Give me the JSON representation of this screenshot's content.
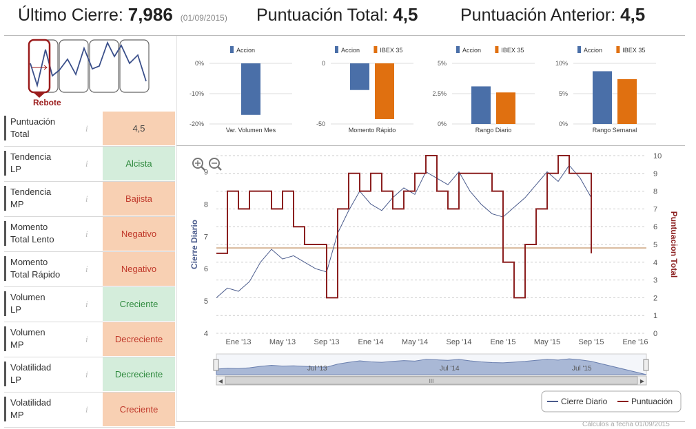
{
  "header": {
    "last_close_label": "Último Cierre:",
    "last_close_value": "7,986",
    "last_close_date": "(01/09/2015)",
    "total_score_label": "Puntuación Total:",
    "total_score_value": "4,5",
    "prev_score_label": "Puntuación Anterior:",
    "prev_score_value": "4,5"
  },
  "pattern": {
    "label": "Rebote",
    "accent": "#9b1c1c"
  },
  "indicators": [
    {
      "label_1": "Puntuación",
      "label_2": "Total",
      "value": "4,5",
      "bg": "#f8d0b3",
      "color": "#444"
    },
    {
      "label_1": "Tendencia",
      "label_2": "LP",
      "value": "Alcista",
      "bg": "#d4eddb",
      "color": "#2f8a3e"
    },
    {
      "label_1": "Tendencia",
      "label_2": "MP",
      "value": "Bajista",
      "bg": "#f8d0b3",
      "color": "#c0392b"
    },
    {
      "label_1": "Momento",
      "label_2": "Total Lento",
      "value": "Negativo",
      "bg": "#f8d0b3",
      "color": "#c0392b"
    },
    {
      "label_1": "Momento",
      "label_2": "Total Rápido",
      "value": "Negativo",
      "bg": "#f8d0b3",
      "color": "#c0392b"
    },
    {
      "label_1": "Volumen",
      "label_2": "LP",
      "value": "Creciente",
      "bg": "#d4eddb",
      "color": "#2f8a3e"
    },
    {
      "label_1": "Volumen",
      "label_2": "MP",
      "value": "Decreciente",
      "bg": "#f8d0b3",
      "color": "#c0392b"
    },
    {
      "label_1": "Volatilidad",
      "label_2": "LP",
      "value": "Decreciente",
      "bg": "#d4eddb",
      "color": "#2f8a3e"
    },
    {
      "label_1": "Volatilidad",
      "label_2": "MP",
      "value": "Creciente",
      "bg": "#f8d0b3",
      "color": "#c0392b"
    }
  ],
  "info_icon": "i",
  "chart_data": [
    {
      "type": "bar",
      "title": "Var. Volumen Mes",
      "legend": [
        "Accion"
      ],
      "yticks": [
        "0%",
        "-10%",
        "-20%"
      ],
      "ylim": [
        -20,
        0
      ],
      "series": [
        {
          "name": "Accion",
          "values": [
            -17
          ],
          "color": "#4a6fa8"
        }
      ]
    },
    {
      "type": "bar",
      "title": "Momento Rápido",
      "legend": [
        "Accion",
        "IBEX 35"
      ],
      "yticks": [
        "0",
        "-50"
      ],
      "ylim": [
        -50,
        0
      ],
      "series": [
        {
          "name": "Accion",
          "values": [
            -22
          ],
          "color": "#4a6fa8"
        },
        {
          "name": "IBEX 35",
          "values": [
            -46
          ],
          "color": "#e07010"
        }
      ]
    },
    {
      "type": "bar",
      "title": "Rango Diario",
      "legend": [
        "Accion",
        "IBEX 35"
      ],
      "yticks": [
        "5%",
        "2.5%",
        "0%"
      ],
      "ylim": [
        0,
        5
      ],
      "series": [
        {
          "name": "Accion",
          "values": [
            3.1
          ],
          "color": "#4a6fa8"
        },
        {
          "name": "IBEX 35",
          "values": [
            2.6
          ],
          "color": "#e07010"
        }
      ]
    },
    {
      "type": "bar",
      "title": "Rango Semanal",
      "legend": [
        "Accion",
        "IBEX 35"
      ],
      "yticks": [
        "10%",
        "5%",
        "0%"
      ],
      "ylim": [
        0,
        10
      ],
      "series": [
        {
          "name": "Accion",
          "values": [
            8.7
          ],
          "color": "#4a6fa8"
        },
        {
          "name": "IBEX 35",
          "values": [
            7.4
          ],
          "color": "#e07010"
        }
      ]
    },
    {
      "type": "line",
      "ylabel": "Cierre Diario",
      "y2label": "Puntuacion Total",
      "x_ticks": [
        "Ene '13",
        "May '13",
        "Sep '13",
        "Ene '14",
        "May '14",
        "Sep '14",
        "Ene '15",
        "May '15",
        "Sep '15",
        "Ene '16"
      ],
      "y_ticks": [
        "4",
        "5",
        "6",
        "7",
        "8",
        "9"
      ],
      "ylim": [
        4,
        9.5
      ],
      "y2_ticks": [
        "0",
        "1",
        "2",
        "3",
        "4",
        "5",
        "6",
        "7",
        "8",
        "9",
        "10"
      ],
      "y2lim": [
        0,
        10
      ],
      "reference_level": 4.8,
      "legend": [
        "Cierre Diario",
        "Puntuación"
      ],
      "navigator_labels": [
        "Jul '13",
        "Jul '14",
        "Jul '15"
      ],
      "series": [
        {
          "name": "Cierre Diario",
          "color": "#4a5b8c",
          "x": [
            "2012-11",
            "2012-12",
            "2013-01",
            "2013-02",
            "2013-03",
            "2013-04",
            "2013-05",
            "2013-06",
            "2013-07",
            "2013-08",
            "2013-09",
            "2013-10",
            "2013-11",
            "2013-12",
            "2014-01",
            "2014-02",
            "2014-03",
            "2014-04",
            "2014-05",
            "2014-06",
            "2014-07",
            "2014-08",
            "2014-09",
            "2014-10",
            "2014-11",
            "2014-12",
            "2015-01",
            "2015-02",
            "2015-03",
            "2015-04",
            "2015-05",
            "2015-06",
            "2015-07",
            "2015-08",
            "2015-09"
          ],
          "values": [
            5.1,
            5.4,
            5.3,
            5.6,
            6.2,
            6.6,
            6.3,
            6.4,
            6.2,
            6.0,
            5.9,
            7.1,
            7.8,
            8.4,
            8.0,
            7.8,
            8.2,
            8.5,
            8.3,
            9.0,
            8.8,
            8.6,
            9.0,
            8.4,
            8.0,
            7.7,
            7.6,
            7.9,
            8.2,
            8.6,
            9.0,
            8.7,
            9.2,
            8.8,
            8.2
          ]
        },
        {
          "name": "Puntuación",
          "color": "#8b1f1f",
          "x": [
            "2012-11",
            "2012-12",
            "2013-01",
            "2013-02",
            "2013-03",
            "2013-04",
            "2013-05",
            "2013-06",
            "2013-07",
            "2013-08",
            "2013-09",
            "2013-10",
            "2013-11",
            "2013-12",
            "2014-01",
            "2014-02",
            "2014-03",
            "2014-04",
            "2014-05",
            "2014-06",
            "2014-07",
            "2014-08",
            "2014-09",
            "2014-10",
            "2014-11",
            "2014-12",
            "2015-01",
            "2015-02",
            "2015-03",
            "2015-04",
            "2015-05",
            "2015-06",
            "2015-07",
            "2015-08",
            "2015-09"
          ],
          "values": [
            4.5,
            8,
            7,
            8,
            8,
            7,
            8,
            6,
            5,
            5,
            2,
            7,
            9,
            8,
            9,
            8,
            7,
            8,
            9,
            10,
            8,
            7,
            9,
            9,
            9,
            8,
            4,
            2,
            5,
            7,
            9,
            10,
            9,
            9,
            4.5
          ]
        }
      ]
    }
  ],
  "footer": "Cálculos a fecha 01/09/2015"
}
